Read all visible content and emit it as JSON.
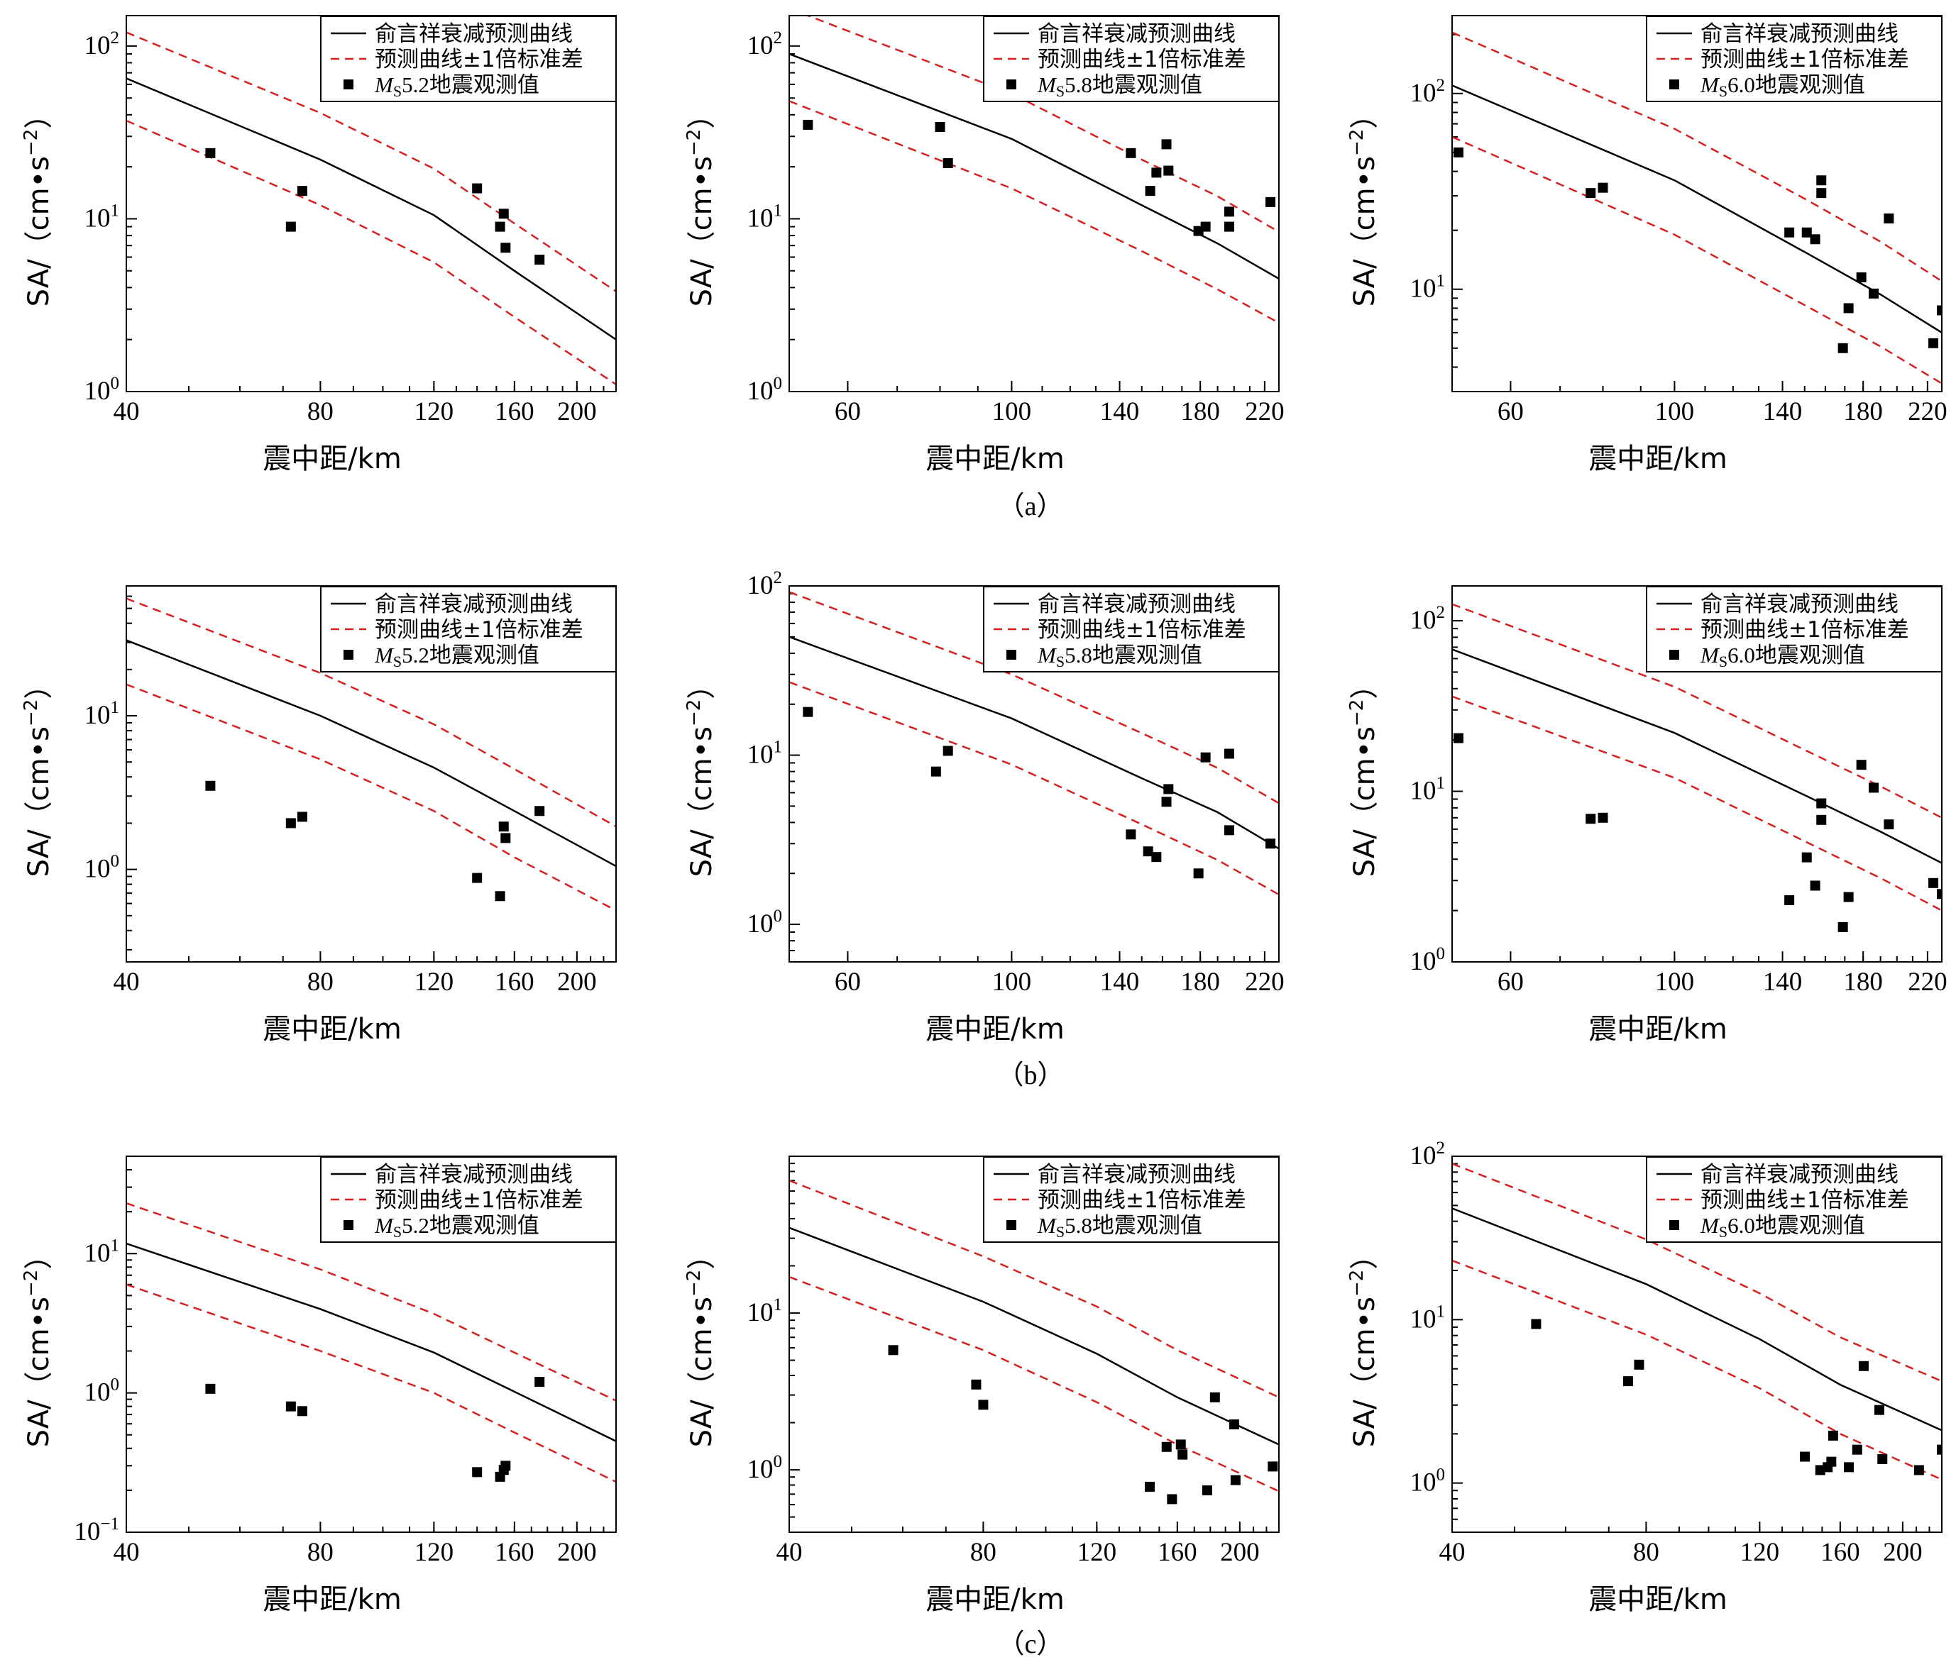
{
  "legend": {
    "line": "俞言祥衰减预测曲线",
    "dash": "预测曲线±1倍标准差",
    "obs_prefix": "M",
    "obs_sub": "S",
    "obs_suffix": "地震观测值"
  },
  "axes": {
    "xlabel": "震中距/km",
    "ylabel_main": "SA/（cm•s",
    "ylabel_exp": "−2",
    "ylabel_close": "）"
  },
  "row_captions": [
    "（a）",
    "（b）",
    "（c）"
  ],
  "colors": {
    "mean": "#000000",
    "std": "#d62020",
    "obs": "#000000"
  },
  "chart_data": [
    {
      "type": "scatter",
      "row": 0,
      "col": 0,
      "magnitude": "5.2",
      "x_scale": "log",
      "y_scale": "log",
      "xlim": [
        40,
        230
      ],
      "ylim": [
        1,
        150
      ],
      "xticks": [
        40,
        80,
        120,
        160,
        200
      ],
      "yticks": [
        1,
        10,
        100
      ],
      "mean_curve": {
        "x": [
          40,
          80,
          120,
          160,
          230
        ],
        "y": [
          65,
          22,
          10.5,
          5.0,
          2.0
        ]
      },
      "std_plus": {
        "x": [
          40,
          80,
          120,
          160,
          230
        ],
        "y": [
          120,
          41,
          19.5,
          9.4,
          3.8
        ]
      },
      "std_minus": {
        "x": [
          40,
          80,
          120,
          160,
          230
        ],
        "y": [
          37,
          12,
          5.6,
          2.7,
          1.1
        ]
      },
      "points": {
        "x": [
          54,
          72,
          75,
          140,
          152,
          154,
          155,
          175
        ],
        "y": [
          24,
          9,
          14.5,
          15,
          9,
          10.7,
          6.8,
          5.8
        ]
      }
    },
    {
      "type": "scatter",
      "row": 0,
      "col": 1,
      "magnitude": "5.8",
      "x_scale": "log",
      "y_scale": "log",
      "xlim": [
        50,
        230
      ],
      "ylim": [
        1,
        150
      ],
      "xticks": [
        60,
        100,
        140,
        180,
        220
      ],
      "yticks": [
        1,
        10,
        100
      ],
      "mean_curve": {
        "x": [
          50,
          100,
          150,
          190,
          230
        ],
        "y": [
          90,
          29,
          12,
          7.2,
          4.5
        ]
      },
      "std_plus": {
        "x": [
          50,
          100,
          150,
          190,
          230
        ],
        "y": [
          165,
          53,
          22,
          13.5,
          8.4
        ]
      },
      "std_minus": {
        "x": [
          50,
          100,
          150,
          190,
          230
        ],
        "y": [
          48,
          15,
          6.5,
          3.9,
          2.5
        ]
      },
      "points": {
        "x": [
          53,
          80,
          82,
          145,
          154,
          157,
          162,
          163,
          179,
          183,
          197,
          197,
          224
        ],
        "y": [
          35,
          34,
          21,
          24,
          14.5,
          18.5,
          27,
          19,
          8.5,
          9,
          11,
          9,
          12.5
        ]
      }
    },
    {
      "type": "scatter",
      "row": 0,
      "col": 2,
      "magnitude": "6.0",
      "x_scale": "log",
      "y_scale": "log",
      "xlim": [
        50,
        230
      ],
      "ylim": [
        3,
        250
      ],
      "xticks": [
        60,
        100,
        140,
        180,
        220
      ],
      "yticks": [
        10,
        100
      ],
      "mean_curve": {
        "x": [
          50,
          100,
          150,
          190,
          230
        ],
        "y": [
          110,
          36,
          15.5,
          9.4,
          6.0
        ]
      },
      "std_plus": {
        "x": [
          50,
          100,
          150,
          190,
          230
        ],
        "y": [
          205,
          66,
          29,
          17.5,
          11
        ]
      },
      "std_minus": {
        "x": [
          50,
          100,
          150,
          190,
          230
        ],
        "y": [
          60,
          19,
          8.3,
          5.1,
          3.3
        ]
      },
      "points": {
        "x": [
          51,
          77,
          80,
          143,
          151,
          155,
          158,
          158,
          169,
          172,
          179,
          186,
          195,
          224,
          230
        ],
        "y": [
          50,
          31,
          33,
          19.5,
          19.5,
          18,
          36,
          31,
          5,
          8,
          11.5,
          9.5,
          23,
          5.3,
          7.8
        ]
      }
    },
    {
      "type": "scatter",
      "row": 1,
      "col": 0,
      "magnitude": "5.2",
      "x_scale": "log",
      "y_scale": "log",
      "xlim": [
        40,
        230
      ],
      "ylim": [
        0.25,
        70
      ],
      "xticks": [
        40,
        80,
        120,
        160,
        200
      ],
      "yticks": [
        1,
        10
      ],
      "mean_curve": {
        "x": [
          40,
          80,
          120,
          160,
          230
        ],
        "y": [
          31,
          10,
          4.6,
          2.4,
          1.05
        ]
      },
      "std_plus": {
        "x": [
          40,
          80,
          120,
          160,
          230
        ],
        "y": [
          58,
          19,
          8.8,
          4.5,
          1.9
        ]
      },
      "std_minus": {
        "x": [
          40,
          80,
          120,
          160,
          230
        ],
        "y": [
          16,
          5.2,
          2.4,
          1.2,
          0.54
        ]
      },
      "points": {
        "x": [
          54,
          72,
          75,
          140,
          152,
          154,
          155,
          175
        ],
        "y": [
          3.5,
          2.0,
          2.2,
          0.88,
          0.67,
          1.9,
          1.6,
          2.4
        ]
      }
    },
    {
      "type": "scatter",
      "row": 1,
      "col": 1,
      "magnitude": "5.8",
      "x_scale": "log",
      "y_scale": "log",
      "xlim": [
        50,
        230
      ],
      "ylim": [
        0.6,
        100
      ],
      "xticks": [
        60,
        100,
        140,
        180,
        220
      ],
      "yticks": [
        1,
        10,
        100
      ],
      "mean_curve": {
        "x": [
          50,
          100,
          150,
          190,
          230
        ],
        "y": [
          50,
          16.5,
          7.3,
          4.6,
          2.8
        ]
      },
      "std_plus": {
        "x": [
          50,
          100,
          150,
          190,
          230
        ],
        "y": [
          92,
          30,
          13.5,
          8.4,
          5.2
        ]
      },
      "std_minus": {
        "x": [
          50,
          100,
          150,
          190,
          230
        ],
        "y": [
          27,
          8.8,
          3.9,
          2.4,
          1.5
        ]
      },
      "points": {
        "x": [
          53,
          79,
          82,
          145,
          153,
          157,
          162,
          163,
          179,
          183,
          197,
          197,
          224
        ],
        "y": [
          18,
          8,
          10.6,
          3.4,
          2.7,
          2.5,
          5.3,
          6.3,
          2.0,
          9.7,
          10.2,
          3.6,
          3.0
        ]
      }
    },
    {
      "type": "scatter",
      "row": 1,
      "col": 2,
      "magnitude": "6.0",
      "x_scale": "log",
      "y_scale": "log",
      "xlim": [
        50,
        230
      ],
      "ylim": [
        1,
        160
      ],
      "xticks": [
        60,
        100,
        140,
        180,
        220
      ],
      "yticks": [
        1,
        10,
        100
      ],
      "mean_curve": {
        "x": [
          50,
          100,
          150,
          190,
          230
        ],
        "y": [
          68,
          22,
          9.5,
          5.8,
          3.8
        ]
      },
      "std_plus": {
        "x": [
          50,
          100,
          150,
          190,
          230
        ],
        "y": [
          125,
          41,
          17.5,
          10.7,
          7.0
        ]
      },
      "std_minus": {
        "x": [
          50,
          100,
          150,
          190,
          230
        ],
        "y": [
          36,
          12,
          5.1,
          3.1,
          2.0
        ]
      },
      "points": {
        "x": [
          51,
          77,
          80,
          143,
          151,
          155,
          158,
          158,
          169,
          172,
          179,
          186,
          195,
          224,
          230
        ],
        "y": [
          20.5,
          6.9,
          7.0,
          2.3,
          4.1,
          2.8,
          6.8,
          8.5,
          1.6,
          2.4,
          14.3,
          10.5,
          6.4,
          2.9,
          2.5
        ]
      }
    },
    {
      "type": "scatter",
      "row": 2,
      "col": 0,
      "magnitude": "5.2",
      "x_scale": "log",
      "y_scale": "log",
      "xlim": [
        40,
        230
      ],
      "ylim": [
        0.1,
        50
      ],
      "xticks": [
        40,
        80,
        120,
        160,
        200
      ],
      "yticks": [
        0.1,
        1,
        10
      ],
      "mean_curve": {
        "x": [
          40,
          80,
          120,
          160,
          230
        ],
        "y": [
          11.8,
          4.0,
          1.95,
          1.02,
          0.45
        ]
      },
      "std_plus": {
        "x": [
          40,
          80,
          120,
          160,
          230
        ],
        "y": [
          23,
          7.7,
          3.7,
          1.95,
          0.88
        ]
      },
      "std_minus": {
        "x": [
          40,
          80,
          120,
          160,
          230
        ],
        "y": [
          6.0,
          2.0,
          1.0,
          0.52,
          0.23
        ]
      },
      "points": {
        "x": [
          54,
          72,
          75,
          140,
          152,
          154,
          155,
          175
        ],
        "y": [
          1.07,
          0.8,
          0.74,
          0.27,
          0.25,
          0.28,
          0.3,
          1.2
        ]
      }
    },
    {
      "type": "scatter",
      "row": 2,
      "col": 1,
      "magnitude": "5.8",
      "x_scale": "log",
      "y_scale": "log",
      "xlim": [
        40,
        230
      ],
      "ylim": [
        0.4,
        100
      ],
      "xticks": [
        40,
        80,
        120,
        160,
        200
      ],
      "yticks": [
        1,
        10
      ],
      "mean_curve": {
        "x": [
          40,
          80,
          120,
          160,
          230
        ],
        "y": [
          35,
          11.8,
          5.5,
          2.9,
          1.45
        ]
      },
      "std_plus": {
        "x": [
          40,
          80,
          120,
          160,
          230
        ],
        "y": [
          70,
          23,
          11,
          5.8,
          2.9
        ]
      },
      "std_minus": {
        "x": [
          40,
          80,
          120,
          160,
          230
        ],
        "y": [
          17,
          5.8,
          2.7,
          1.45,
          0.73
        ]
      },
      "points": {
        "x": [
          58,
          78,
          80,
          145,
          154,
          157,
          162,
          163,
          178,
          183,
          196,
          197,
          225
        ],
        "y": [
          5.8,
          3.5,
          2.6,
          0.78,
          1.4,
          0.65,
          1.45,
          1.25,
          0.74,
          2.9,
          1.95,
          0.86,
          1.05
        ]
      }
    },
    {
      "type": "scatter",
      "row": 2,
      "col": 2,
      "magnitude": "6.0",
      "x_scale": "log",
      "y_scale": "log",
      "xlim": [
        40,
        230
      ],
      "ylim": [
        0.5,
        100
      ],
      "xticks": [
        40,
        80,
        120,
        160,
        200
      ],
      "yticks": [
        1,
        10,
        100
      ],
      "mean_curve": {
        "x": [
          40,
          80,
          120,
          160,
          230
        ],
        "y": [
          48,
          16.5,
          7.6,
          4.0,
          2.1
        ]
      },
      "std_plus": {
        "x": [
          40,
          80,
          120,
          160,
          230
        ],
        "y": [
          90,
          31,
          14.5,
          7.8,
          4.2
        ]
      },
      "std_minus": {
        "x": [
          40,
          80,
          120,
          160,
          230
        ],
        "y": [
          23,
          8.1,
          3.8,
          2.0,
          1.05
        ]
      },
      "points": {
        "x": [
          54,
          75,
          78,
          141,
          149,
          153,
          155,
          156,
          165,
          170,
          174,
          184,
          186,
          212,
          230
        ],
        "y": [
          9.4,
          4.2,
          5.3,
          1.45,
          1.2,
          1.25,
          1.35,
          1.95,
          1.25,
          1.6,
          5.2,
          2.8,
          1.4,
          1.2,
          1.6
        ]
      }
    }
  ]
}
